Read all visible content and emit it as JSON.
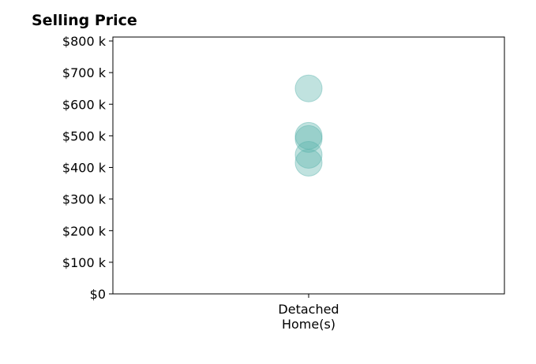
{
  "chart_data": {
    "type": "scatter",
    "title": "Selling Price",
    "xlabel": "",
    "ylabel": "",
    "categories": [
      [
        "Detached",
        "Home(s)"
      ]
    ],
    "points": [
      {
        "category": 0,
        "value": 650000
      },
      {
        "category": 0,
        "value": 500000
      },
      {
        "category": 0,
        "value": 490000
      },
      {
        "category": 0,
        "value": 440000
      },
      {
        "category": 0,
        "value": 415000
      }
    ],
    "ylim": [
      0,
      812500
    ],
    "yticks": [
      0,
      100000,
      200000,
      300000,
      400000,
      500000,
      600000,
      700000,
      800000
    ],
    "ytick_labels": [
      "$0",
      "$100 k",
      "$200 k",
      "$300 k",
      "$400 k",
      "$500 k",
      "$600 k",
      "$700 k",
      "$800 k"
    ],
    "marker_color": "#5ab4ac",
    "marker_opacity": 0.38,
    "grid": false,
    "legend": "none"
  }
}
